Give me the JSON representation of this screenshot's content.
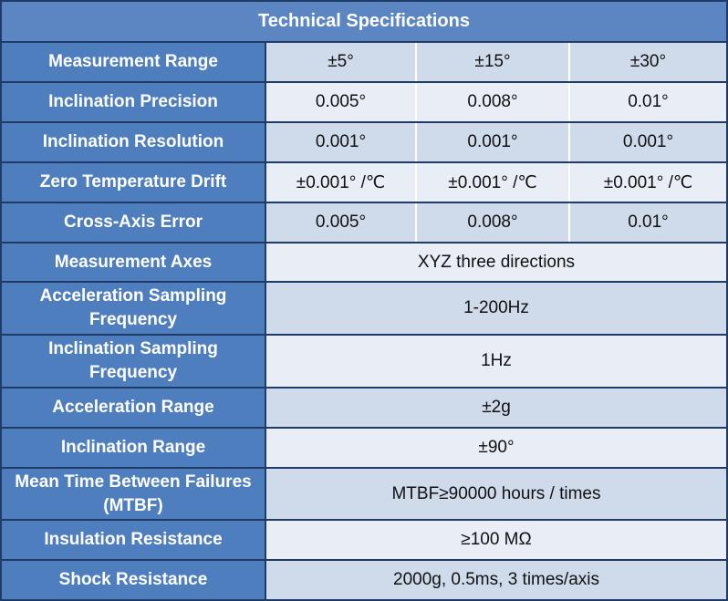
{
  "title": "Technical Specifications",
  "rows": [
    {
      "label": "Measurement Range",
      "values": [
        "±5°",
        "±15°",
        "±30°"
      ]
    },
    {
      "label": "Inclination Precision",
      "values": [
        "0.005°",
        "0.008°",
        "0.01°"
      ]
    },
    {
      "label": "Inclination Resolution",
      "values": [
        "0.001°",
        "0.001°",
        "0.001°"
      ]
    },
    {
      "label": "Zero Temperature Drift",
      "values": [
        "±0.001° /℃",
        "±0.001° /℃",
        "±0.001° /℃"
      ]
    },
    {
      "label": "Cross-Axis Error",
      "values": [
        "0.005°",
        "0.008°",
        "0.01°"
      ]
    },
    {
      "label": "Measurement Axes",
      "value": "XYZ three directions"
    },
    {
      "label": "Acceleration Sampling Frequency",
      "value": "1-200Hz"
    },
    {
      "label": "Inclination Sampling Frequency",
      "value": "1Hz"
    },
    {
      "label": "Acceleration Range",
      "value": "±2g"
    },
    {
      "label": "Inclination Range",
      "value": "±90°"
    },
    {
      "label": "Mean Time Between Failures (MTBF)",
      "value": "MTBF≥90000 hours / times"
    },
    {
      "label": "Insulation Resistance",
      "value": "≥100 MΩ"
    },
    {
      "label": "Shock Resistance",
      "value": "2000g, 0.5ms, 3 times/axis"
    }
  ],
  "colors": {
    "header": "#5b86c2",
    "label_bg": "#4f7ebf",
    "row_light": "#e8edf6",
    "row_dark": "#cfdaeb",
    "border": "#1f3c68"
  }
}
